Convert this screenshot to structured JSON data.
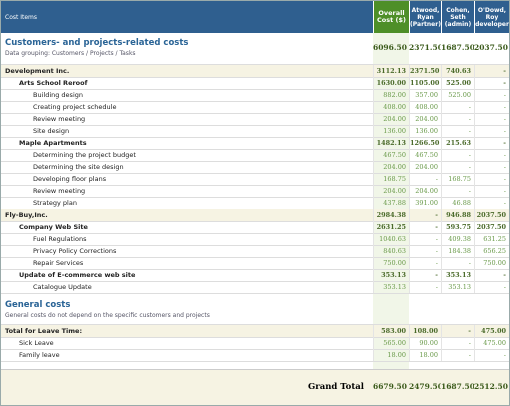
{
  "header": {
    "columns": [
      "Cost Items",
      "Overall Cost ($)",
      "Atwood, Ryan (Partner)",
      "Cohen, Seth (admin)",
      "O'Dowd, Roy (developer)"
    ]
  },
  "projects_section": {
    "title": "Customers- and projects-related costs",
    "subtitle": "Data grouping: Customers / Projects / Tasks",
    "values": [
      "6096.50",
      "2371.50",
      "1687.50",
      "2037.50"
    ],
    "customers": [
      {
        "name": "Development Inc.",
        "values": [
          "3112.13",
          "2371.50",
          "740.63",
          "-"
        ],
        "projects": [
          {
            "name": "Arts School Reroof",
            "values": [
              "1630.00",
              "1105.00",
              "525.00",
              "-"
            ],
            "tasks": [
              {
                "name": "Building design",
                "values": [
                  "882.00",
                  "357.00",
                  "525.00",
                  "-"
                ]
              },
              {
                "name": "Creating project schedule",
                "values": [
                  "408.00",
                  "408.00",
                  "-",
                  "-"
                ]
              },
              {
                "name": "Review meeting",
                "values": [
                  "204.00",
                  "204.00",
                  "-",
                  "-"
                ]
              },
              {
                "name": "Site design",
                "values": [
                  "136.00",
                  "136.00",
                  "-",
                  "-"
                ]
              }
            ]
          },
          {
            "name": "Maple Apartments",
            "values": [
              "1482.13",
              "1266.50",
              "215.63",
              "-"
            ],
            "tasks": [
              {
                "name": "Determining the project budget",
                "values": [
                  "467.50",
                  "467.50",
                  "-",
                  "-"
                ]
              },
              {
                "name": "Determining the site design",
                "values": [
                  "204.00",
                  "204.00",
                  "-",
                  "-"
                ]
              },
              {
                "name": "Developing floor plans",
                "values": [
                  "168.75",
                  "-",
                  "168.75",
                  "-"
                ]
              },
              {
                "name": "Review meeting",
                "values": [
                  "204.00",
                  "204.00",
                  "-",
                  "-"
                ]
              },
              {
                "name": "Strategy plan",
                "values": [
                  "437.88",
                  "391.00",
                  "46.88",
                  "-"
                ]
              }
            ]
          }
        ]
      },
      {
        "name": "Fly-Buy,Inc.",
        "values": [
          "2984.38",
          "-",
          "946.88",
          "2037.50"
        ],
        "projects": [
          {
            "name": "Company Web Site",
            "values": [
              "2631.25",
              "-",
              "593.75",
              "2037.50"
            ],
            "tasks": [
              {
                "name": "Fuel Regulations",
                "values": [
                  "1040.63",
                  "-",
                  "409.38",
                  "631.25"
                ]
              },
              {
                "name": "Privacy Policy Corrections",
                "values": [
                  "840.63",
                  "-",
                  "184.38",
                  "656.25"
                ]
              },
              {
                "name": "Repair Services",
                "values": [
                  "750.00",
                  "-",
                  "-",
                  "750.00"
                ]
              }
            ]
          },
          {
            "name": "Update of E-commerce web site",
            "values": [
              "353.13",
              "-",
              "353.13",
              "-"
            ],
            "tasks": [
              {
                "name": "Catalogue Update",
                "values": [
                  "353.13",
                  "-",
                  "353.13",
                  "-"
                ]
              }
            ]
          }
        ]
      }
    ]
  },
  "general_section": {
    "title": "General costs",
    "subtitle": "General costs do not depend on the specific customers and projects",
    "groups": [
      {
        "name": "Total for Leave Time:",
        "values": [
          "583.00",
          "108.00",
          "-",
          "475.00"
        ],
        "items": [
          {
            "name": "Sick Leave",
            "values": [
              "565.00",
              "90.00",
              "-",
              "475.00"
            ]
          },
          {
            "name": "Family leave",
            "values": [
              "18.00",
              "18.00",
              "-",
              "-"
            ]
          }
        ]
      }
    ]
  },
  "grand_total": {
    "label": "Grand Total",
    "values": [
      "6679.50",
      "2479.50",
      "1687.50",
      "2512.50"
    ]
  }
}
